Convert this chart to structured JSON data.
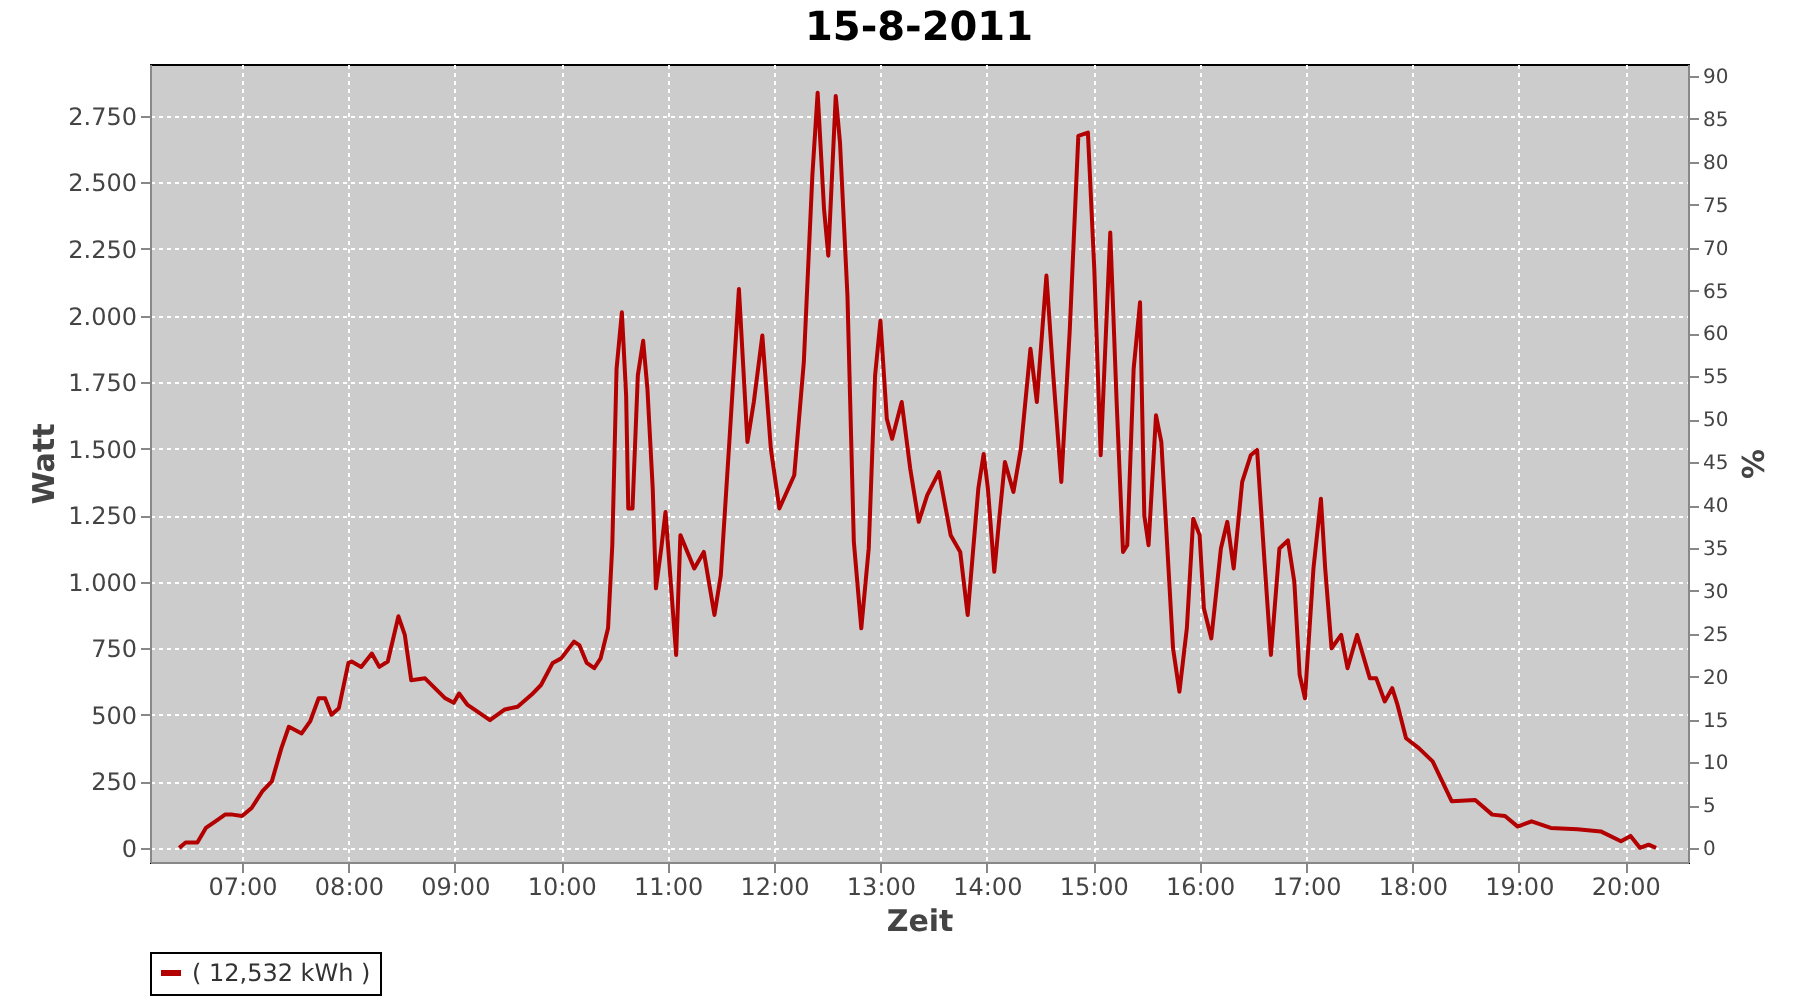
{
  "chart_data": {
    "type": "line",
    "title": "15-8-2011",
    "xlabel": "Zeit",
    "ylabel": "Watt",
    "y2label": "%",
    "xlim": [
      6.135,
      20.59
    ],
    "ylim": [
      -53,
      2945
    ],
    "y2lim": [
      -1.6,
      91.4
    ],
    "xticks": [
      {
        "value": 7,
        "label": "07:00"
      },
      {
        "value": 8,
        "label": "08:00"
      },
      {
        "value": 9,
        "label": "09:00"
      },
      {
        "value": 10,
        "label": "10:00"
      },
      {
        "value": 11,
        "label": "11:00"
      },
      {
        "value": 12,
        "label": "12:00"
      },
      {
        "value": 13,
        "label": "13:00"
      },
      {
        "value": 14,
        "label": "14:00"
      },
      {
        "value": 15,
        "label": "15:00"
      },
      {
        "value": 16,
        "label": "16:00"
      },
      {
        "value": 17,
        "label": "17:00"
      },
      {
        "value": 18,
        "label": "18:00"
      },
      {
        "value": 19,
        "label": "19:00"
      },
      {
        "value": 20,
        "label": "20:00"
      }
    ],
    "yticks": [
      0,
      250,
      500,
      750,
      {
        "value": 1000,
        "label": "1.000"
      },
      {
        "value": 1250,
        "label": "1.250"
      },
      {
        "value": 1500,
        "label": "1.500"
      },
      {
        "value": 1750,
        "label": "1.750"
      },
      {
        "value": 2000,
        "label": "2.000"
      },
      {
        "value": 2250,
        "label": "2.250"
      },
      {
        "value": 2500,
        "label": "2.500"
      },
      {
        "value": 2750,
        "label": "2.750"
      }
    ],
    "y2ticks": [
      0,
      5,
      10,
      15,
      20,
      25,
      30,
      35,
      40,
      45,
      50,
      55,
      60,
      65,
      70,
      75,
      80,
      85,
      90
    ],
    "grid": true,
    "legend": "bottom",
    "line_style": "solid",
    "series": [
      {
        "name": "( 12,532 kWh )",
        "color": "#b30000",
        "x": [
          6.41,
          6.47,
          6.58,
          6.66,
          6.75,
          6.84,
          6.91,
          7.0,
          7.09,
          7.19,
          7.28,
          7.37,
          7.44,
          7.56,
          7.64,
          7.72,
          7.78,
          7.84,
          7.91,
          8.0,
          8.03,
          8.12,
          8.22,
          8.29,
          8.37,
          8.47,
          8.53,
          8.59,
          8.72,
          8.91,
          8.99,
          9.04,
          9.12,
          9.33,
          9.47,
          9.59,
          9.72,
          9.81,
          9.92,
          10.0,
          10.12,
          10.17,
          10.24,
          10.31,
          10.37,
          10.44,
          10.48,
          10.52,
          10.57,
          10.61,
          10.63,
          10.67,
          10.72,
          10.77,
          10.81,
          10.86,
          10.89,
          10.94,
          10.98,
          11.08,
          11.12,
          11.25,
          11.34,
          11.44,
          11.5,
          11.58,
          11.67,
          11.75,
          11.81,
          11.89,
          11.97,
          12.05,
          12.19,
          12.28,
          12.36,
          12.41,
          12.47,
          12.51,
          12.58,
          12.62,
          12.69,
          12.75,
          12.82,
          12.89,
          12.95,
          13.0,
          13.06,
          13.11,
          13.2,
          13.28,
          13.36,
          13.44,
          13.55,
          13.66,
          13.75,
          13.82,
          13.92,
          13.97,
          14.01,
          14.07,
          14.12,
          14.17,
          14.25,
          14.32,
          14.41,
          14.47,
          14.56,
          14.62,
          14.7,
          14.78,
          14.86,
          14.95,
          15.01,
          15.07,
          15.16,
          15.22,
          15.28,
          15.32,
          15.38,
          15.44,
          15.48,
          15.52,
          15.59,
          15.64,
          15.75,
          15.81,
          15.88,
          15.94,
          16.0,
          16.04,
          16.11,
          16.2,
          16.26,
          16.32,
          16.4,
          16.48,
          16.54,
          16.61,
          16.67,
          16.75,
          16.83,
          16.89,
          16.94,
          16.99,
          17.07,
          17.14,
          17.18,
          17.24,
          17.33,
          17.39,
          17.48,
          17.6,
          17.66,
          17.74,
          17.81,
          17.86,
          17.94,
          18.06,
          18.19,
          18.37,
          18.59,
          18.75,
          18.87,
          18.99,
          19.12,
          19.3,
          19.55,
          19.77,
          19.96,
          20.05,
          20.14,
          20.22,
          20.29
        ],
        "values": [
          0,
          20,
          20,
          75,
          100,
          125,
          125,
          120,
          150,
          212,
          250,
          375,
          455,
          430,
          475,
          562,
          562,
          500,
          525,
          695,
          700,
          680,
          730,
          680,
          700,
          870,
          800,
          630,
          637,
          562,
          545,
          580,
          537,
          480,
          520,
          530,
          575,
          612,
          695,
          712,
          775,
          762,
          695,
          675,
          712,
          825,
          1137,
          1800,
          2012,
          1700,
          1275,
          1275,
          1775,
          1905,
          1725,
          1350,
          975,
          1125,
          1262,
          725,
          1175,
          1050,
          1112,
          875,
          1025,
          1525,
          2100,
          1525,
          1675,
          1925,
          1500,
          1275,
          1400,
          1825,
          2525,
          2837,
          2400,
          2225,
          2825,
          2650,
          2075,
          1150,
          825,
          1125,
          1775,
          1980,
          1612,
          1537,
          1675,
          1425,
          1225,
          1325,
          1412,
          1175,
          1112,
          875,
          1350,
          1480,
          1350,
          1037,
          1250,
          1450,
          1337,
          1500,
          1875,
          1675,
          2150,
          1800,
          1375,
          1950,
          2675,
          2687,
          2175,
          1475,
          2312,
          1675,
          1112,
          1137,
          1800,
          2050,
          1250,
          1137,
          1625,
          1525,
          750,
          587,
          825,
          1237,
          1175,
          900,
          787,
          1125,
          1225,
          1050,
          1375,
          1475,
          1495,
          1075,
          725,
          1125,
          1155,
          1000,
          650,
          562,
          1050,
          1312,
          1050,
          750,
          800,
          675,
          800,
          637,
          637,
          550,
          600,
          537,
          412,
          375,
          325,
          175,
          180,
          125,
          120,
          80,
          100,
          75,
          70,
          62,
          25,
          45,
          0,
          12,
          0
        ]
      }
    ]
  }
}
